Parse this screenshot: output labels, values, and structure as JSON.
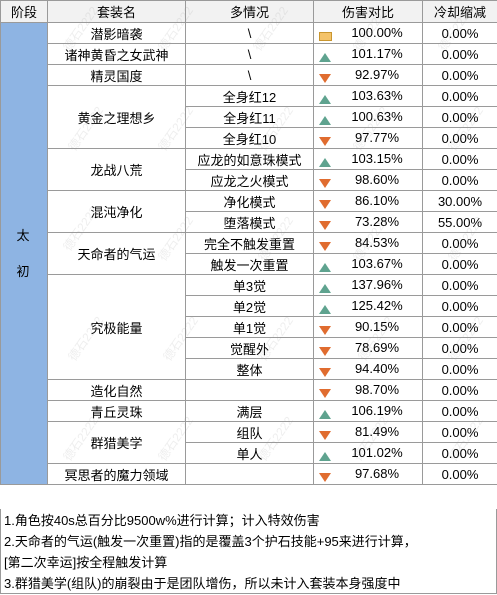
{
  "headers": {
    "stage": "阶段",
    "set": "套装名",
    "situation": "多情况",
    "dmg": "伤害对比",
    "cd": "冷却缩减"
  },
  "stage_label": "太初",
  "sets": [
    {
      "name": "潜影暗袭",
      "rows": [
        {
          "situation": "\\",
          "trend": "flat",
          "dmg": "100.00%",
          "cd": "0.00%"
        }
      ]
    },
    {
      "name": "诸神黄昏之女武神",
      "rows": [
        {
          "situation": "\\",
          "trend": "up",
          "dmg": "101.17%",
          "cd": "0.00%"
        }
      ]
    },
    {
      "name": "精灵国度",
      "rows": [
        {
          "situation": "\\",
          "trend": "down",
          "dmg": "92.97%",
          "cd": "0.00%"
        }
      ]
    },
    {
      "name": "黄金之理想乡",
      "rows": [
        {
          "situation": "全身红12",
          "trend": "up",
          "dmg": "103.63%",
          "cd": "0.00%"
        },
        {
          "situation": "全身红11",
          "trend": "up",
          "dmg": "100.63%",
          "cd": "0.00%"
        },
        {
          "situation": "全身红10",
          "trend": "down",
          "dmg": "97.77%",
          "cd": "0.00%"
        }
      ]
    },
    {
      "name": "龙战八荒",
      "rows": [
        {
          "situation": "应龙的如意珠模式",
          "trend": "up",
          "dmg": "103.15%",
          "cd": "0.00%"
        },
        {
          "situation": "应龙之火模式",
          "trend": "down",
          "dmg": "98.60%",
          "cd": "0.00%"
        }
      ]
    },
    {
      "name": "混沌净化",
      "rows": [
        {
          "situation": "净化模式",
          "trend": "down",
          "dmg": "86.10%",
          "cd": "30.00%"
        },
        {
          "situation": "堕落模式",
          "trend": "down",
          "dmg": "73.28%",
          "cd": "55.00%"
        }
      ]
    },
    {
      "name": "天命者的气运",
      "rows": [
        {
          "situation": "完全不触发重置",
          "trend": "down",
          "dmg": "84.53%",
          "cd": "0.00%"
        },
        {
          "situation": "触发一次重置",
          "trend": "up",
          "dmg": "103.67%",
          "cd": "0.00%"
        }
      ]
    },
    {
      "name": "究极能量",
      "rows": [
        {
          "situation": "单3觉",
          "trend": "up",
          "dmg": "137.96%",
          "cd": "0.00%"
        },
        {
          "situation": "单2觉",
          "trend": "up",
          "dmg": "125.42%",
          "cd": "0.00%"
        },
        {
          "situation": "单1觉",
          "trend": "down",
          "dmg": "90.15%",
          "cd": "0.00%"
        },
        {
          "situation": "觉醒外",
          "trend": "down",
          "dmg": "78.69%",
          "cd": "0.00%"
        },
        {
          "situation": "整体",
          "trend": "down",
          "dmg": "94.40%",
          "cd": "0.00%"
        }
      ]
    },
    {
      "name": "造化自然",
      "rows": [
        {
          "situation": "",
          "trend": "down",
          "dmg": "98.70%",
          "cd": "0.00%"
        }
      ]
    },
    {
      "name": "青丘灵珠",
      "rows": [
        {
          "situation": "满层",
          "trend": "up",
          "dmg": "106.19%",
          "cd": "0.00%"
        }
      ]
    },
    {
      "name": "群猎美学",
      "rows": [
        {
          "situation": "组队",
          "trend": "down",
          "dmg": "81.49%",
          "cd": "0.00%"
        },
        {
          "situation": "单人",
          "trend": "up",
          "dmg": "101.02%",
          "cd": "0.00%"
        }
      ]
    },
    {
      "name": "冥思者的魔力领域",
      "rows": [
        {
          "situation": "",
          "trend": "down",
          "dmg": "97.68%",
          "cd": "0.00%"
        }
      ]
    }
  ],
  "notes": [
    "1.角色按40s总百分比9500w%进行计算；计入特效伤害",
    "2.天命者的气运(触发一次重置)指的是覆盖3个护石技能+95来进行计算，",
    "[第二次幸运]按全程触发计算",
    "3.群猎美学(组队)的崩裂由于是团队增伤，所以未计入套装本身强度中"
  ],
  "watermark": "德石2222",
  "colors": {
    "stage_bg": "#8eb4e3",
    "up": "#5fa38f",
    "down": "#e06c2f",
    "flat": "#f4c36a"
  }
}
